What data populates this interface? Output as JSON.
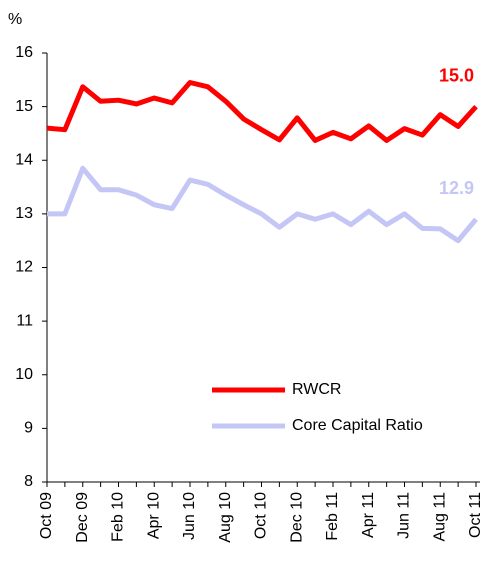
{
  "chart_data": {
    "type": "line",
    "y_unit": "%",
    "categories": [
      "Oct 09",
      null,
      "Dec 09",
      null,
      "Feb 10",
      null,
      "Apr 10",
      null,
      "Jun 10",
      null,
      "Aug 10",
      null,
      "Oct 10",
      null,
      "Dec 10",
      null,
      "Feb 11",
      null,
      "Apr 11",
      null,
      "Jun 11",
      null,
      "Aug 11",
      null,
      "Oct 11"
    ],
    "series": [
      {
        "name": "RWCR",
        "color": "#ff0000",
        "values": [
          14.6,
          14.57,
          15.37,
          15.1,
          15.12,
          15.05,
          15.16,
          15.07,
          15.45,
          15.37,
          15.1,
          14.77,
          14.57,
          14.38,
          14.79,
          14.37,
          14.52,
          14.4,
          14.64,
          14.37,
          14.59,
          14.47,
          14.85,
          14.63,
          15.0
        ],
        "value_labels": [
          null,
          null,
          null,
          null,
          null,
          null,
          null,
          null,
          null,
          null,
          null,
          null,
          null,
          null,
          null,
          null,
          null,
          null,
          null,
          null,
          null,
          null,
          null,
          null,
          "15.0"
        ]
      },
      {
        "name": "Core Capital Ratio",
        "color": "#c4c6f6",
        "values": [
          13.0,
          13.0,
          13.85,
          13.45,
          13.45,
          13.35,
          13.17,
          13.1,
          13.63,
          13.55,
          13.35,
          13.17,
          13.0,
          12.75,
          13.0,
          12.9,
          13.0,
          12.8,
          13.05,
          12.8,
          13.0,
          12.73,
          12.72,
          12.5,
          12.9
        ],
        "value_labels": [
          null,
          null,
          null,
          null,
          null,
          null,
          null,
          null,
          null,
          null,
          null,
          null,
          null,
          null,
          null,
          null,
          null,
          null,
          null,
          null,
          null,
          null,
          null,
          null,
          "12.9"
        ]
      }
    ],
    "ylim": [
      8,
      16
    ],
    "yticks": [
      8,
      9,
      10,
      11,
      12,
      13,
      14,
      15,
      16
    ],
    "grid": false,
    "legend": "lower-right"
  }
}
